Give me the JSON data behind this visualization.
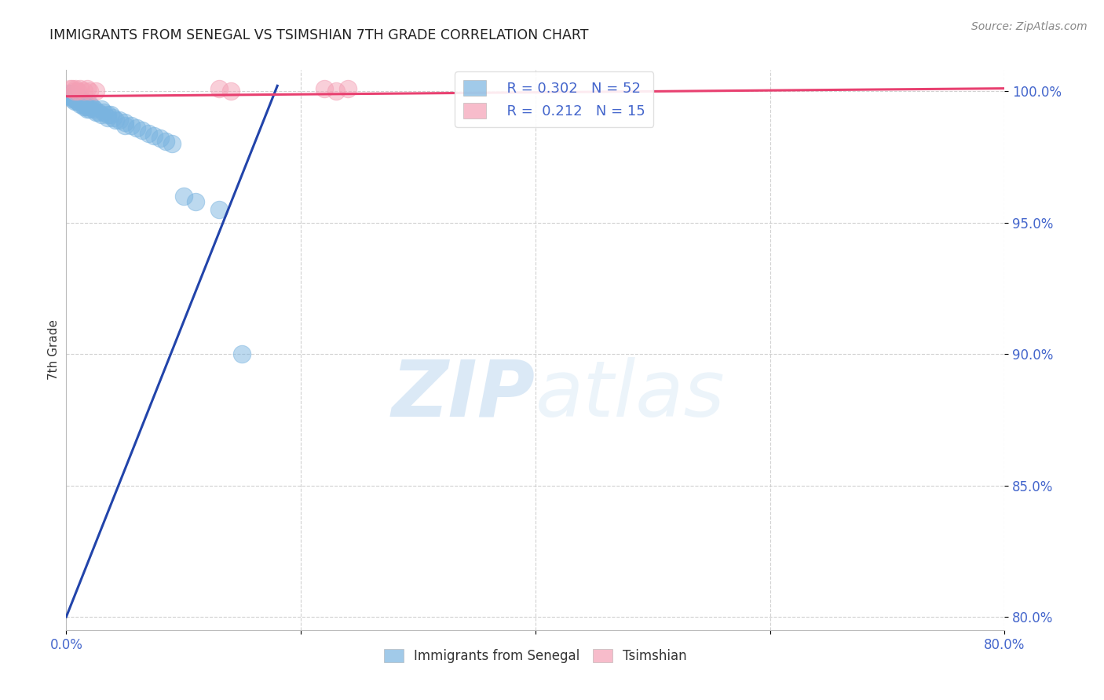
{
  "title": "IMMIGRANTS FROM SENEGAL VS TSIMSHIAN 7TH GRADE CORRELATION CHART",
  "source": "Source: ZipAtlas.com",
  "xlabel_bottom": "Immigrants from Senegal",
  "ylabel": "7th Grade",
  "x_min": 0.0,
  "x_max": 0.8,
  "y_min": 0.795,
  "y_max": 1.008,
  "y_ticks": [
    0.8,
    0.85,
    0.9,
    0.95,
    1.0
  ],
  "y_tick_labels": [
    "80.0%",
    "85.0%",
    "90.0%",
    "95.0%",
    "100.0%"
  ],
  "x_ticks": [
    0.0,
    0.2,
    0.4,
    0.6,
    0.8
  ],
  "x_tick_labels": [
    "0.0%",
    "",
    "",
    "",
    "80.0%"
  ],
  "blue_color": "#7ab4e0",
  "pink_color": "#f4a0b5",
  "blue_line_color": "#2244aa",
  "pink_line_color": "#e84070",
  "legend_R_blue": "0.302",
  "legend_N_blue": "52",
  "legend_R_pink": "0.212",
  "legend_N_pink": "15",
  "blue_scatter_x": [
    0.002,
    0.003,
    0.004,
    0.005,
    0.005,
    0.006,
    0.007,
    0.007,
    0.008,
    0.009,
    0.01,
    0.01,
    0.01,
    0.012,
    0.012,
    0.013,
    0.014,
    0.015,
    0.015,
    0.016,
    0.017,
    0.018,
    0.019,
    0.02,
    0.02,
    0.022,
    0.024,
    0.025,
    0.027,
    0.03,
    0.03,
    0.032,
    0.035,
    0.035,
    0.038,
    0.04,
    0.042,
    0.045,
    0.05,
    0.05,
    0.055,
    0.06,
    0.065,
    0.07,
    0.075,
    0.08,
    0.085,
    0.09,
    0.1,
    0.11,
    0.13,
    0.15
  ],
  "blue_scatter_y": [
    0.999,
    0.998,
    0.998,
    0.999,
    0.997,
    0.998,
    0.997,
    0.996,
    0.997,
    0.996,
    0.998,
    0.997,
    0.996,
    0.997,
    0.995,
    0.996,
    0.995,
    0.996,
    0.994,
    0.995,
    0.994,
    0.993,
    0.994,
    0.995,
    0.993,
    0.994,
    0.993,
    0.992,
    0.992,
    0.993,
    0.991,
    0.992,
    0.991,
    0.99,
    0.991,
    0.99,
    0.989,
    0.989,
    0.988,
    0.987,
    0.987,
    0.986,
    0.985,
    0.984,
    0.983,
    0.982,
    0.981,
    0.98,
    0.96,
    0.958,
    0.955,
    0.9
  ],
  "pink_scatter_x": [
    0.003,
    0.005,
    0.007,
    0.008,
    0.01,
    0.012,
    0.015,
    0.018,
    0.02,
    0.025,
    0.13,
    0.14,
    0.22,
    0.23,
    0.24
  ],
  "pink_scatter_y": [
    1.001,
    1.001,
    1.0,
    1.001,
    1.0,
    1.001,
    1.0,
    1.001,
    1.0,
    1.0,
    1.001,
    1.0,
    1.001,
    1.0,
    1.001
  ],
  "blue_trendline_x": [
    0.0,
    0.18
  ],
  "blue_trendline_y": [
    0.8,
    1.002
  ],
  "pink_trendline_x": [
    0.0,
    0.8
  ],
  "pink_trendline_y": [
    0.998,
    1.001
  ],
  "watermark_zip": "ZIP",
  "watermark_atlas": "atlas",
  "grid_color": "#cccccc",
  "background_color": "#ffffff",
  "tick_color": "#4466cc",
  "label_color": "#333333"
}
